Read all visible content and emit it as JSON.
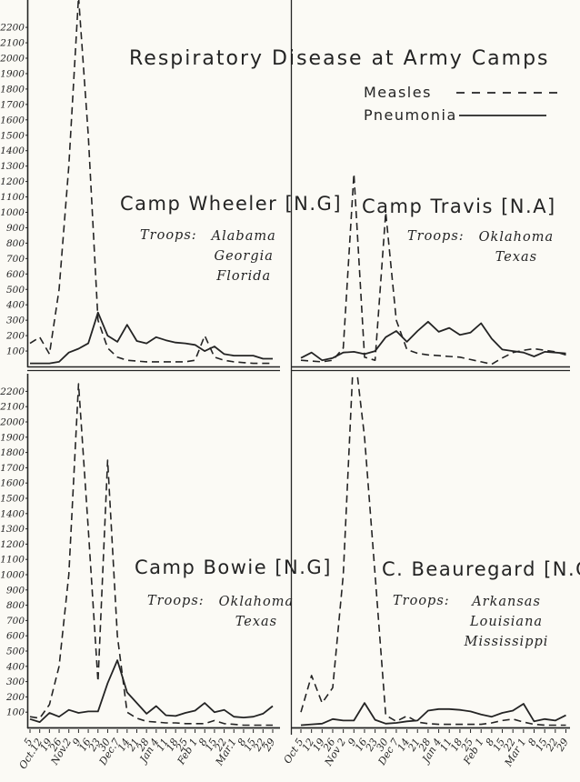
{
  "title": "Respiratory Disease at Army Camps",
  "legend": {
    "measles_label": "Measles",
    "pneumonia_label": "Pneumonia"
  },
  "colors": {
    "ink": "#242424",
    "paper": "#fbfaf5"
  },
  "y_axis_labels": [
    "2200",
    "2100",
    "2000",
    "1900",
    "1800",
    "1700",
    "1600",
    "1500",
    "1400",
    "1300",
    "1200",
    "1100",
    "1000",
    "900",
    "800",
    "700",
    "600",
    "500",
    "400",
    "300",
    "200",
    "100"
  ],
  "x_tick_labels_left": [
    "5",
    "Oct.12",
    "19",
    "26",
    "Nov.2",
    "9",
    "16",
    "23",
    "30",
    "Dec.7",
    "14",
    "21",
    "28",
    "Jan 4",
    "11",
    "18",
    "25",
    "Feb 1",
    "8",
    "15",
    "22",
    "Mar.1",
    "8",
    "15",
    "22",
    "29"
  ],
  "x_tick_labels_right": [
    "Oct 5",
    "12",
    "19",
    "26",
    "Nov 2",
    "9",
    "16",
    "23",
    "30",
    "Dec 7",
    "14",
    "21",
    "28",
    "Jan 4",
    "11",
    "18",
    "25",
    "Feb 1",
    "8",
    "15",
    "22",
    "Mar 1",
    "8",
    "15",
    "22",
    "29"
  ],
  "chart_data": [
    {
      "type": "line",
      "camp": "Camp Wheeler [N.G]",
      "troops_label": "Troops:",
      "troops": [
        "Alabama",
        "Georgia",
        "Florida"
      ],
      "categories": [
        "Oct 5",
        "Oct 12",
        "Oct 19",
        "Oct 26",
        "Nov 2",
        "Nov 9",
        "Nov 16",
        "Nov 23",
        "Nov 30",
        "Dec 7",
        "Dec 14",
        "Dec 21",
        "Dec 28",
        "Jan 4",
        "Jan 11",
        "Jan 18",
        "Jan 25",
        "Feb 1",
        "Feb 8",
        "Feb 15",
        "Feb 22",
        "Mar 1",
        "Mar 8",
        "Mar 15",
        "Mar 22",
        "Mar 29"
      ],
      "series": [
        {
          "name": "Measles",
          "style": "dashed",
          "values": [
            150,
            190,
            80,
            500,
            1300,
            2400,
            1500,
            300,
            120,
            60,
            40,
            35,
            30,
            30,
            30,
            30,
            30,
            40,
            200,
            60,
            40,
            30,
            25,
            20,
            20,
            20
          ]
        },
        {
          "name": "Pneumonia",
          "style": "solid",
          "values": [
            20,
            20,
            20,
            30,
            90,
            115,
            150,
            350,
            200,
            160,
            270,
            165,
            150,
            190,
            170,
            155,
            150,
            140,
            100,
            130,
            80,
            70,
            70,
            70,
            50,
            50
          ]
        }
      ],
      "ylim": [
        0,
        2300
      ],
      "grid": false,
      "measles_peak_offscale": true
    },
    {
      "type": "line",
      "camp": "Camp Travis  [N.A]",
      "troops_label": "Troops:",
      "troops": [
        "Oklahoma",
        "Texas"
      ],
      "categories": [
        "Oct 5",
        "Oct 12",
        "Oct 19",
        "Oct 26",
        "Nov 2",
        "Nov 9",
        "Nov 16",
        "Nov 23",
        "Nov 30",
        "Dec 7",
        "Dec 14",
        "Dec 21",
        "Dec 28",
        "Jan 4",
        "Jan 11",
        "Jan 18",
        "Jan 25",
        "Feb 1",
        "Feb 8",
        "Feb 15",
        "Feb 22",
        "Mar 1",
        "Mar 8",
        "Mar 15",
        "Mar 22",
        "Mar 29"
      ],
      "series": [
        {
          "name": "Measles",
          "style": "dashed",
          "values": [
            40,
            35,
            30,
            40,
            120,
            1250,
            60,
            40,
            1000,
            300,
            110,
            85,
            75,
            70,
            65,
            60,
            45,
            30,
            15,
            55,
            90,
            105,
            115,
            105,
            95,
            75
          ]
        },
        {
          "name": "Pneumonia",
          "style": "solid",
          "values": [
            55,
            90,
            40,
            55,
            90,
            95,
            80,
            100,
            190,
            230,
            160,
            230,
            290,
            225,
            250,
            205,
            220,
            280,
            180,
            110,
            100,
            90,
            65,
            95,
            90,
            85
          ]
        }
      ],
      "ylim": [
        0,
        2300
      ],
      "grid": false,
      "measles_peak_offscale": false
    },
    {
      "type": "line",
      "camp": "Camp Bowie [N.G]",
      "troops_label": "Troops:",
      "troops": [
        "Oklahoma",
        "Texas"
      ],
      "categories": [
        "Oct 5",
        "Oct 12",
        "Oct 19",
        "Oct 26",
        "Nov 2",
        "Nov 9",
        "Nov 16",
        "Nov 23",
        "Nov 30",
        "Dec 7",
        "Dec 14",
        "Dec 21",
        "Dec 28",
        "Jan 4",
        "Jan 11",
        "Jan 18",
        "Jan 25",
        "Feb 1",
        "Feb 8",
        "Feb 15",
        "Feb 22",
        "Mar 1",
        "Mar 8",
        "Mar 15",
        "Mar 22",
        "Mar 29"
      ],
      "series": [
        {
          "name": "Measles",
          "style": "dashed",
          "values": [
            70,
            60,
            150,
            400,
            1000,
            2250,
            1300,
            300,
            1750,
            600,
            100,
            60,
            40,
            35,
            30,
            30,
            25,
            25,
            25,
            45,
            25,
            20,
            15,
            15,
            15,
            15
          ]
        },
        {
          "name": "Pneumonia",
          "style": "solid",
          "values": [
            55,
            35,
            95,
            70,
            115,
            95,
            105,
            105,
            290,
            440,
            230,
            160,
            90,
            140,
            80,
            75,
            95,
            110,
            160,
            100,
            115,
            70,
            65,
            70,
            90,
            140
          ]
        }
      ],
      "ylim": [
        0,
        2300
      ],
      "grid": false,
      "measles_peak_offscale": false
    },
    {
      "type": "line",
      "camp": "C. Beauregard [N.G]",
      "troops_label": "Troops:",
      "troops": [
        "Arkansas",
        "Louisiana",
        "Mississippi"
      ],
      "categories": [
        "Oct 5",
        "Oct 12",
        "Oct 19",
        "Oct 26",
        "Nov 2",
        "Nov 9",
        "Nov 16",
        "Nov 23",
        "Nov 30",
        "Dec 7",
        "Dec 14",
        "Dec 21",
        "Dec 28",
        "Jan 4",
        "Jan 11",
        "Jan 18",
        "Jan 25",
        "Feb 1",
        "Feb 8",
        "Feb 15",
        "Feb 22",
        "Mar 1",
        "Mar 8",
        "Mar 15",
        "Mar 22",
        "Mar 29"
      ],
      "series": [
        {
          "name": "Measles",
          "style": "dashed",
          "values": [
            100,
            340,
            160,
            260,
            1000,
            2500,
            1900,
            1000,
            80,
            40,
            75,
            35,
            25,
            20,
            20,
            20,
            20,
            20,
            30,
            45,
            55,
            35,
            20,
            15,
            15,
            15
          ]
        },
        {
          "name": "Pneumonia",
          "style": "solid",
          "values": [
            15,
            20,
            25,
            55,
            45,
            45,
            160,
            50,
            25,
            30,
            40,
            45,
            110,
            120,
            120,
            115,
            105,
            85,
            70,
            95,
            110,
            155,
            40,
            55,
            45,
            80
          ]
        }
      ],
      "ylim": [
        0,
        2300
      ],
      "grid": false,
      "measles_peak_offscale": true
    }
  ]
}
